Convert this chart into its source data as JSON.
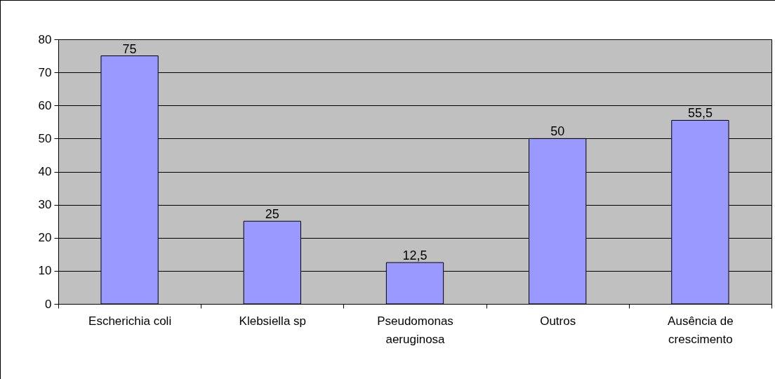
{
  "chart_data": {
    "type": "bar",
    "categories": [
      "Escherichia coli",
      "Klebsiella sp",
      "Pseudomonas aeruginosa",
      "Outros",
      "Ausência de crescimento"
    ],
    "values": [
      75,
      25,
      12.5,
      50,
      55.5
    ],
    "value_labels": [
      "75",
      "25",
      "12,5",
      "50",
      "55,5"
    ],
    "color": "#9999ff",
    "ylim": [
      0,
      80
    ],
    "yticks": [
      0,
      10,
      20,
      30,
      40,
      50,
      60,
      70,
      80
    ],
    "grid": "y"
  }
}
